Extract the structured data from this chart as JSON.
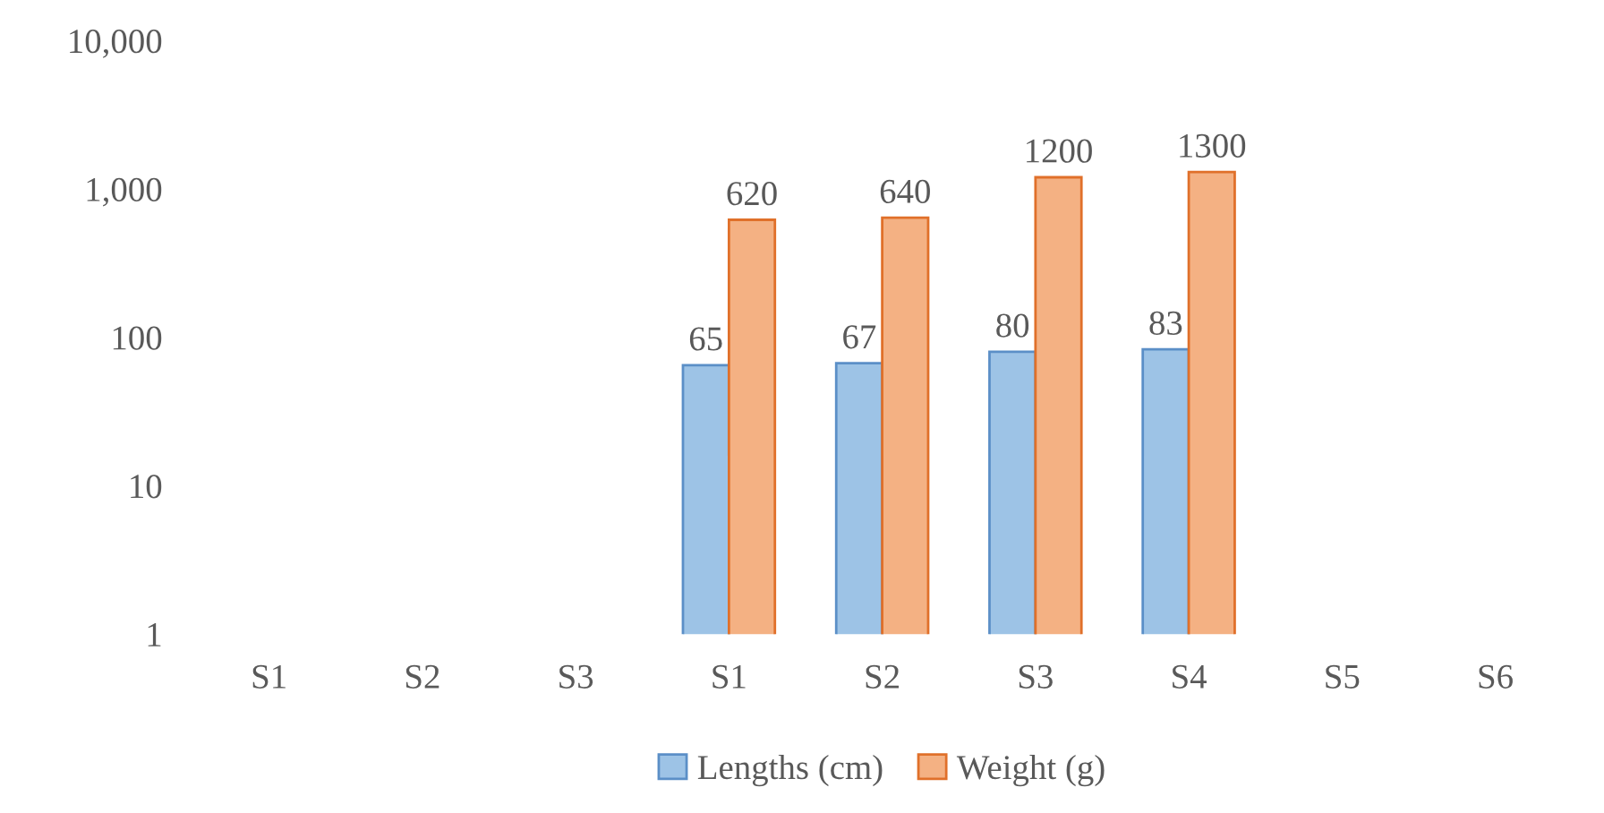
{
  "chart_data": {
    "type": "bar",
    "categories": [
      "S1",
      "S2",
      "S3",
      "S1",
      "S2",
      "S3",
      "S4",
      "S5",
      "S6"
    ],
    "series": [
      {
        "name": "Lengths (cm)",
        "color": "#9dc3e6",
        "values": [
          null,
          null,
          null,
          65,
          67,
          80,
          83,
          null,
          null
        ]
      },
      {
        "name": "Weight (g)",
        "color": "#f4b183",
        "values": [
          null,
          null,
          null,
          620,
          640,
          1200,
          1300,
          null,
          null
        ]
      }
    ],
    "log": "y",
    "ylim": [
      1,
      10000
    ],
    "yticks": [
      1,
      10,
      100,
      {
        "value": 1000,
        "label": "1,000"
      },
      {
        "value": 10000,
        "label": "10,000"
      }
    ],
    "grid": false,
    "legend": "bottom",
    "data_labels": true
  }
}
